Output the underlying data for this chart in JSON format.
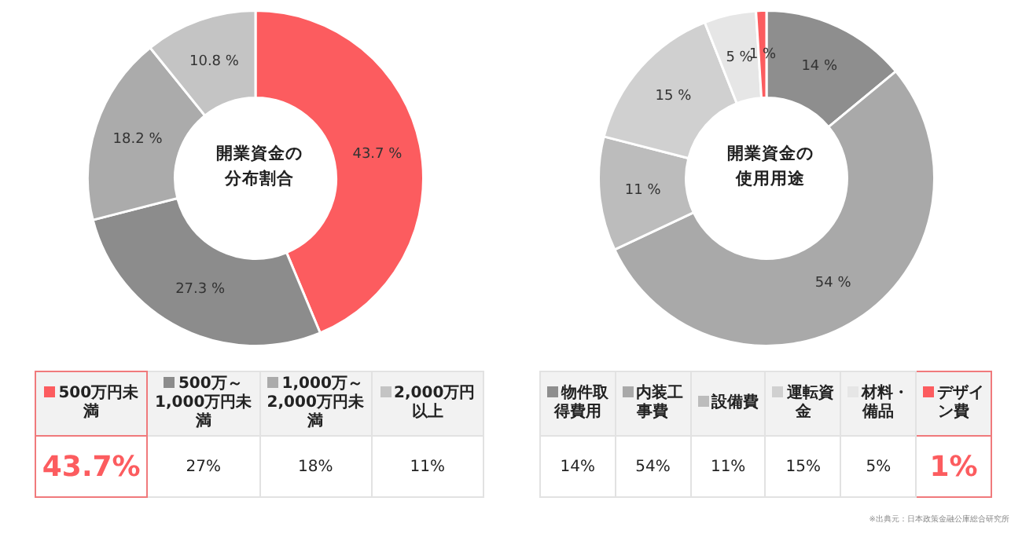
{
  "chart_data": [
    {
      "type": "donut",
      "title": "開業資金の分布割合",
      "categories": [
        "500万円未満",
        "500万～ 1,000万円未満",
        "1,000万～2,000万円未満",
        "2,000万円以上"
      ],
      "values": [
        43.7,
        27.3,
        18.2,
        10.8
      ],
      "colors": [
        "#fc5c5f",
        "#8c8c8c",
        "#ababab",
        "#c4c4c4"
      ],
      "value_labels": [
        "43.7 %",
        "27.3 %",
        "18.2 %",
        "10.8 %"
      ],
      "legend": "bottom",
      "annotations": [
        "43.7%",
        "27%",
        "18%",
        "11%"
      ]
    },
    {
      "type": "donut",
      "title": "開業資金の使用用途",
      "categories": [
        "物件取得費用",
        "内装工事費",
        "設備費",
        "運転資金",
        "材料・備品",
        "デザイン費"
      ],
      "values": [
        14,
        54,
        11,
        15,
        5,
        1
      ],
      "colors": [
        "#8e8e8e",
        "#a9a9a9",
        "#bcbcbc",
        "#d0d0d0",
        "#e6e6e6",
        "#fc5c5f"
      ],
      "value_labels": [
        "14 %",
        "54 %",
        "11 %",
        "15 %",
        "5 %",
        "1 %"
      ],
      "legend": "bottom",
      "annotations": [
        "14%",
        "54%",
        "11%",
        "15%",
        "5%",
        "1%",
        "※出典元：日本政策金融公庫総合研究所"
      ]
    }
  ]
}
